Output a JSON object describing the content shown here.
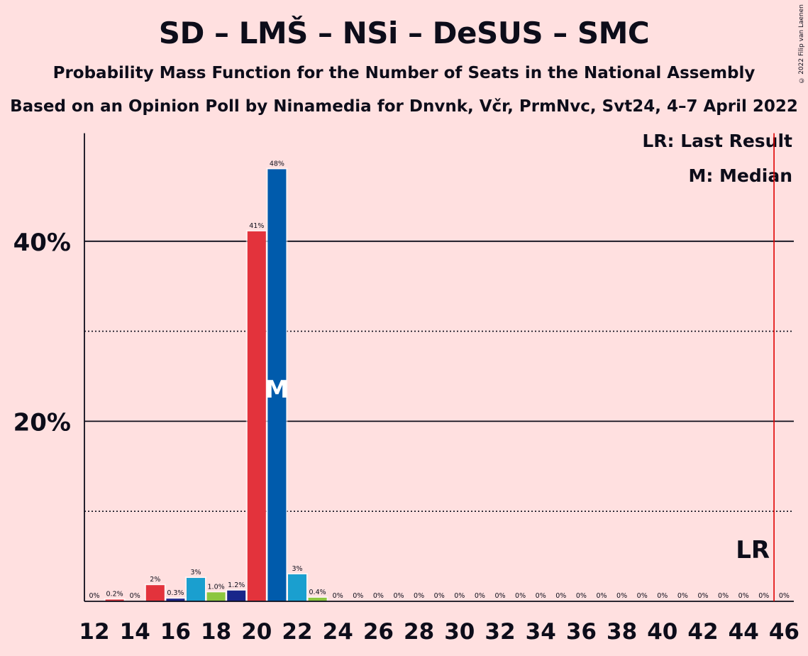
{
  "title": "SD – LMŠ – NSi – DeSUS – SMC",
  "subtitle": "Probability Mass Function for the Number of Seats in the National Assembly",
  "source": "Based on an Opinion Poll by Ninamedia for Dnvnk, Včr, PrmNvc, Svt24, 4–7 April 2022",
  "copyright": "© 2022 Filip van Laenen",
  "legend": {
    "last_result": "LR: Last Result",
    "median": "M: Median"
  },
  "markers": {
    "median_label": "M",
    "median_seat": 21,
    "last_result_label": "LR",
    "last_result_seat": 45.5
  },
  "colors": {
    "background": "#FFE0E0",
    "red": "#E3333C",
    "blue": "#005BAC",
    "dark_blue": "#19258A",
    "light_blue": "#1A9FCF",
    "green": "#8DC63F",
    "lr_line": "#E00000"
  },
  "chart_data": {
    "type": "bar",
    "x": [
      12,
      13,
      14,
      15,
      16,
      17,
      18,
      19,
      20,
      21,
      22,
      23,
      24,
      25,
      26,
      27,
      28,
      29,
      30,
      31,
      32,
      33,
      34,
      35,
      36,
      37,
      38,
      39,
      40,
      41,
      42,
      43,
      44,
      45,
      46
    ],
    "values": [
      0,
      0.2,
      0,
      1.8,
      0.3,
      2.6,
      1.0,
      1.2,
      41.1,
      48.0,
      3.0,
      0.4,
      0,
      0,
      0,
      0,
      0,
      0,
      0,
      0,
      0,
      0,
      0,
      0,
      0,
      0,
      0,
      0,
      0,
      0,
      0,
      0,
      0,
      0,
      0
    ],
    "data_labels": [
      "0%",
      "0.2%",
      "0%",
      "2%",
      "0.3%",
      "3%",
      "1.0%",
      "1.2%",
      "41%",
      "48%",
      "3%",
      "0.4%",
      "0%",
      "0%",
      "0%",
      "0%",
      "0%",
      "0%",
      "0%",
      "0%",
      "0%",
      "0%",
      "0%",
      "0%",
      "0%",
      "0%",
      "0%",
      "0%",
      "0%",
      "0%",
      "0%",
      "0%",
      "0%",
      "0%",
      "0%"
    ],
    "bar_colors": [
      "red",
      "red",
      "red",
      "red",
      "dark_blue",
      "light_blue",
      "green",
      "dark_blue",
      "red",
      "blue",
      "light_blue",
      "green",
      "red",
      "red",
      "red",
      "red",
      "red",
      "red",
      "red",
      "red",
      "red",
      "red",
      "red",
      "red",
      "red",
      "red",
      "red",
      "red",
      "red",
      "red",
      "red",
      "red",
      "red",
      "red",
      "red"
    ],
    "x_tick_labels": [
      "12",
      "14",
      "16",
      "18",
      "20",
      "22",
      "24",
      "26",
      "28",
      "30",
      "32",
      "34",
      "36",
      "38",
      "40",
      "42",
      "44",
      "46"
    ],
    "y_tick_labels": [
      "20%",
      "40%"
    ],
    "ylim": [
      0,
      52
    ],
    "y_major_gridlines": [
      20,
      40
    ],
    "y_minor_gridlines": [
      10,
      30
    ]
  }
}
